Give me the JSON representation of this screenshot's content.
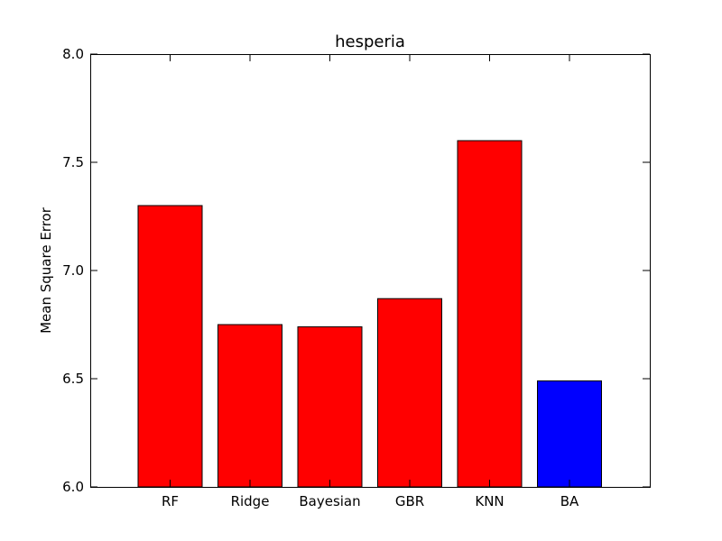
{
  "chart_data": {
    "type": "bar",
    "title": "hesperia",
    "xlabel": "",
    "ylabel": "Mean Square Error",
    "categories": [
      "RF",
      "Ridge",
      "Bayesian",
      "GBR",
      "KNN",
      "BA"
    ],
    "values": [
      7.3,
      6.75,
      6.74,
      6.87,
      7.6,
      6.49
    ],
    "bar_colors": [
      "#ff0000",
      "#ff0000",
      "#ff0000",
      "#ff0000",
      "#ff0000",
      "#0000ff"
    ],
    "ylim": [
      6.0,
      8.0
    ],
    "yticks": [
      6.0,
      6.5,
      7.0,
      7.5,
      8.0
    ],
    "ytick_labels": [
      "6.0",
      "6.5",
      "7.0",
      "7.5",
      "8.0"
    ],
    "grid": false,
    "legend": "none"
  }
}
